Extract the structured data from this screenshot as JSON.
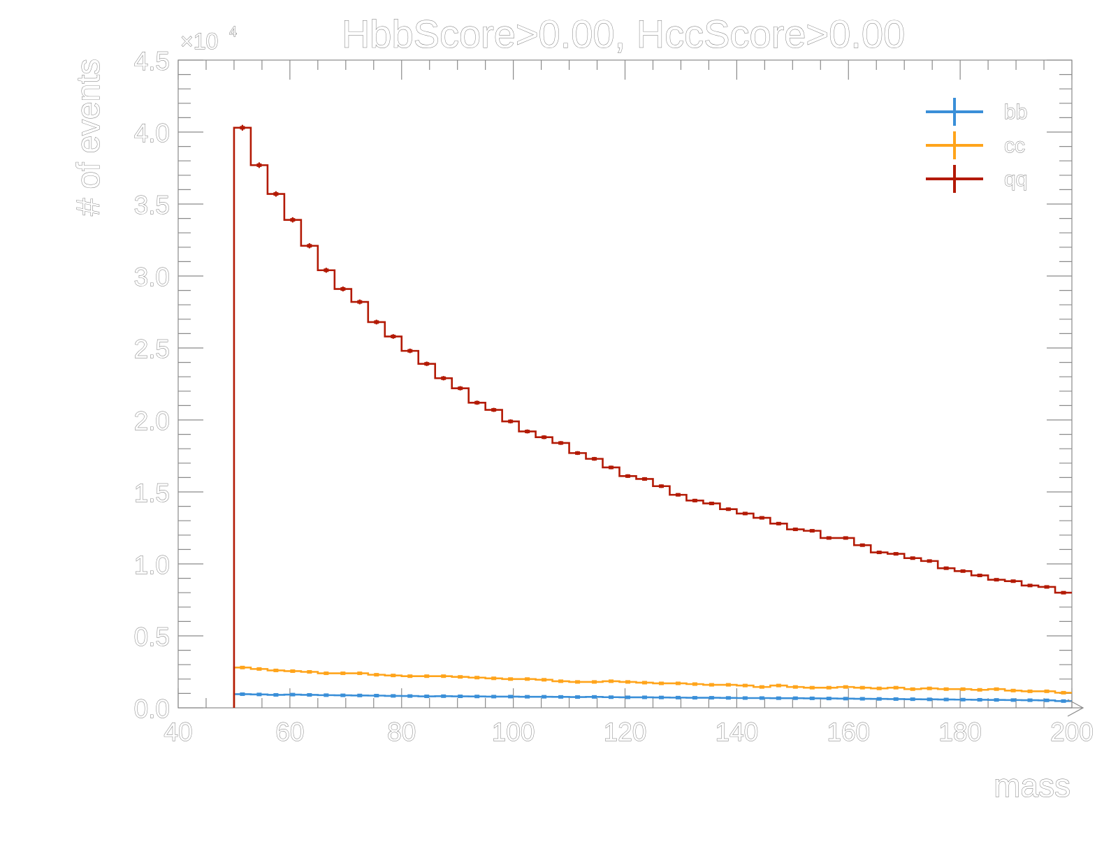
{
  "chart_data": {
    "type": "line",
    "title": "HbbScore>0.00, HccScore>0.00",
    "xlabel": "mass",
    "ylabel": "# of events",
    "y_multiplier_label": "×10",
    "y_multiplier_exponent": "4",
    "xlim": [
      40,
      200
    ],
    "ylim": [
      0,
      45000
    ],
    "grid": false,
    "legend_position": "top-right",
    "x_tick_labels": [
      "40",
      "60",
      "80",
      "100",
      "120",
      "140",
      "160",
      "180",
      "200"
    ],
    "y_tick_labels": [
      "0.0",
      "0.5",
      "1.0",
      "1.5",
      "2.0",
      "2.5",
      "3.0",
      "3.5",
      "4.0",
      "4.5"
    ],
    "x_tick_values": [
      40,
      60,
      80,
      100,
      120,
      140,
      160,
      180,
      200
    ],
    "y_tick_values": [
      0,
      5000,
      10000,
      15000,
      20000,
      25000,
      30000,
      35000,
      40000,
      45000
    ],
    "bin_edges": [
      50,
      53,
      56,
      59,
      62,
      65,
      68,
      71,
      74,
      77,
      80,
      83,
      86,
      89,
      92,
      95,
      98,
      101,
      104,
      107,
      110,
      113,
      116,
      119,
      122,
      125,
      128,
      131,
      134,
      137,
      140,
      143,
      146,
      149,
      152,
      155,
      158,
      161,
      164,
      167,
      170,
      173,
      176,
      179,
      182,
      185,
      188,
      191,
      194,
      197,
      200
    ],
    "series": [
      {
        "name": "bb",
        "color": "#3a8fd8",
        "values": [
          950,
          930,
          900,
          920,
          900,
          880,
          870,
          860,
          850,
          830,
          820,
          800,
          810,
          800,
          790,
          780,
          780,
          770,
          770,
          760,
          750,
          760,
          740,
          730,
          730,
          720,
          710,
          700,
          700,
          690,
          680,
          680,
          670,
          670,
          660,
          650,
          640,
          630,
          620,
          610,
          600,
          590,
          580,
          570,
          560,
          550,
          540,
          530,
          520,
          470
        ]
      },
      {
        "name": "cc",
        "color": "#ffa41b",
        "values": [
          2800,
          2700,
          2600,
          2550,
          2500,
          2400,
          2400,
          2400,
          2300,
          2250,
          2200,
          2200,
          2200,
          2150,
          2100,
          2050,
          2000,
          2000,
          1950,
          1850,
          1800,
          1800,
          1850,
          1800,
          1750,
          1700,
          1700,
          1650,
          1600,
          1600,
          1550,
          1450,
          1550,
          1450,
          1400,
          1400,
          1450,
          1400,
          1350,
          1400,
          1300,
          1350,
          1300,
          1300,
          1250,
          1300,
          1200,
          1150,
          1150,
          1050
        ]
      },
      {
        "name": "qq",
        "color": "#b31a05",
        "values": [
          40300,
          37700,
          35700,
          33900,
          32100,
          30400,
          29100,
          28200,
          26800,
          25800,
          24800,
          23900,
          22900,
          22200,
          21200,
          20700,
          19900,
          19200,
          18800,
          18400,
          17700,
          17300,
          16700,
          16100,
          15900,
          15400,
          14800,
          14400,
          14200,
          13800,
          13500,
          13200,
          12800,
          12400,
          12300,
          11800,
          11800,
          11300,
          10800,
          10700,
          10400,
          10200,
          9700,
          9500,
          9200,
          8900,
          8800,
          8500,
          8400,
          8000
        ]
      }
    ]
  }
}
